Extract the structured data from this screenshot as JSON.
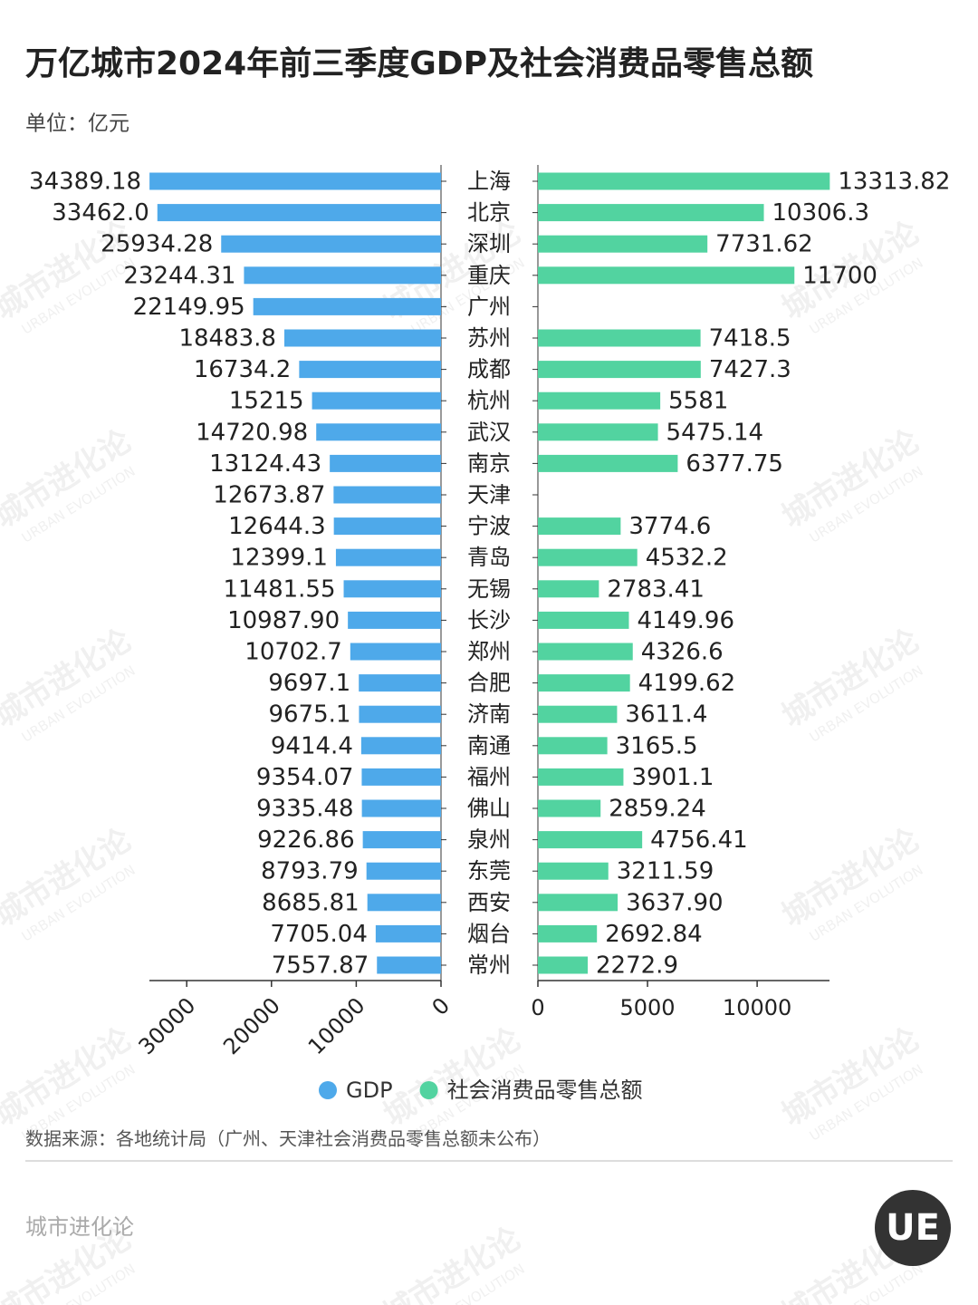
{
  "chart_data": {
    "type": "bar",
    "title": "万亿城市2024年前三季度GDP及社会消费品零售总额",
    "subtitle": "单位：亿元",
    "source": "数据来源：各地统计局（广州、天津社会消费品零售总额未公布）",
    "footer": "城市进化论",
    "watermark": "城市进化论",
    "watermark_en": "URBAN EVOLUTION",
    "logo": "UE",
    "categories": [
      "上海",
      "北京",
      "深圳",
      "重庆",
      "广州",
      "苏州",
      "成都",
      "杭州",
      "武汉",
      "南京",
      "天津",
      "宁波",
      "青岛",
      "无锡",
      "长沙",
      "郑州",
      "合肥",
      "济南",
      "南通",
      "福州",
      "佛山",
      "泉州",
      "东莞",
      "西安",
      "烟台",
      "常州"
    ],
    "series": [
      {
        "name": "GDP",
        "color": "#4ea9ea",
        "axis": "x",
        "values": [
          34389.18,
          33462.0,
          25934.28,
          23244.31,
          22149.95,
          18483.8,
          16734.2,
          15215,
          14720.98,
          13124.43,
          12673.87,
          12644.3,
          12399.1,
          11481.55,
          10987.9,
          10702.7,
          9697.1,
          9675.1,
          9414.4,
          9354.07,
          9335.48,
          9226.86,
          8793.79,
          8685.81,
          7705.04,
          7557.87
        ],
        "value_labels": [
          "34389.18",
          "33462.0",
          "25934.28",
          "23244.31",
          "22149.95",
          "18483.8",
          "16734.2",
          "15215",
          "14720.98",
          "13124.43",
          "12673.87",
          "12644.3",
          "12399.1",
          "11481.55",
          "10987.90",
          "10702.7",
          "9697.1",
          "9675.1",
          "9414.4",
          "9354.07",
          "9335.48",
          "9226.86",
          "8793.79",
          "8685.81",
          "7705.04",
          "7557.87"
        ]
      },
      {
        "name": "社会消费品零售总额",
        "color": "#52d3a0",
        "axis": "x2",
        "values": [
          13313.82,
          10306.3,
          7731.62,
          11700,
          null,
          7418.5,
          7427.3,
          5581,
          5475.14,
          6377.75,
          null,
          3774.6,
          4532.2,
          2783.41,
          4149.96,
          4326.6,
          4199.62,
          3611.4,
          3165.5,
          3901.1,
          2859.24,
          4756.41,
          3211.59,
          3637.9,
          2692.84,
          2272.9
        ],
        "value_labels": [
          "13313.82",
          "10306.3",
          "7731.62",
          "11700",
          null,
          "7418.5",
          "7427.3",
          "5581",
          "5475.14",
          "6377.75",
          null,
          "3774.6",
          "4532.2",
          "2783.41",
          "4149.96",
          "4326.6",
          "4199.62",
          "3611.4",
          "3165.5",
          "3901.1",
          "2859.24",
          "4756.41",
          "3211.59",
          "3637.90",
          "2692.84",
          "2272.9"
        ]
      }
    ],
    "xlim": [
      34400,
      0
    ],
    "xticks": [
      0,
      10000,
      20000,
      30000
    ],
    "x2lim": [
      0,
      13300
    ],
    "x2ticks": [
      0,
      5000,
      10000
    ],
    "legend": "bottom"
  }
}
